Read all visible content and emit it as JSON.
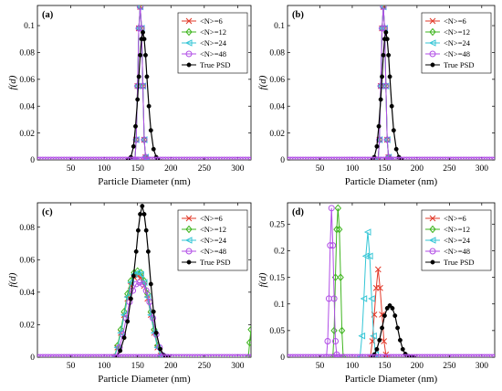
{
  "figure": {
    "legend_placement": "top-right",
    "colors": {
      "N6": "#e23a2a",
      "N12": "#3fb51f",
      "N24": "#35c6d6",
      "N48": "#b14ee6",
      "true": "#000000"
    },
    "markers": {
      "N6": "x-cross",
      "N12": "diamond",
      "N24": "left-triangle",
      "N48": "circle",
      "true": "filled-dot"
    }
  },
  "chart_data": [
    {
      "type": "line",
      "panel_label": "(a)",
      "xlabel": "Particle Diameter (nm)",
      "ylabel": "f(d)",
      "xlim": [
        0,
        320
      ],
      "ylim": [
        0,
        0.115
      ],
      "xticks": [
        50,
        100,
        150,
        200,
        250,
        300
      ],
      "xtick_labels": [
        "50",
        "100",
        "150",
        "200",
        "250",
        "300"
      ],
      "yticks": [
        0,
        0.02,
        0.04,
        0.06,
        0.08,
        0.1
      ],
      "ytick_labels": [
        "0",
        "0.02",
        "0.04",
        "0.06",
        "0.08",
        "0.1"
      ],
      "grid": false,
      "legend": [
        "<N>=6",
        "<N>=12",
        "<N>=24",
        "<N>=48",
        "True PSD"
      ],
      "series": [
        {
          "name": "<N>=6",
          "key": "N6",
          "x": [
            146,
            148,
            150,
            152,
            154,
            156,
            158,
            160,
            162,
            164
          ],
          "y": [
            0,
            0.015,
            0.055,
            0.098,
            0.114,
            0.098,
            0.055,
            0.015,
            0.002,
            0
          ]
        },
        {
          "name": "<N>=12",
          "key": "N12",
          "x": [
            146,
            148,
            150,
            152,
            154,
            156,
            158,
            160,
            162,
            164
          ],
          "y": [
            0,
            0.015,
            0.055,
            0.098,
            0.114,
            0.098,
            0.055,
            0.015,
            0.002,
            0
          ]
        },
        {
          "name": "<N>=24",
          "key": "N24",
          "x": [
            146,
            148,
            150,
            152,
            154,
            156,
            158,
            160,
            162,
            164
          ],
          "y": [
            0,
            0.015,
            0.055,
            0.098,
            0.114,
            0.098,
            0.055,
            0.015,
            0.002,
            0
          ]
        },
        {
          "name": "<N>=48",
          "key": "N48",
          "x": [
            146,
            148,
            150,
            152,
            154,
            156,
            158,
            160,
            162,
            164
          ],
          "y": [
            0,
            0.015,
            0.055,
            0.098,
            0.114,
            0.098,
            0.055,
            0.015,
            0.002,
            0
          ]
        },
        {
          "name": "True PSD",
          "key": "true",
          "x": [
            136,
            140,
            144,
            147,
            150,
            152,
            154,
            156,
            158,
            160,
            162,
            164,
            167,
            170,
            174,
            178,
            182
          ],
          "y": [
            0,
            0.002,
            0.01,
            0.025,
            0.045,
            0.062,
            0.078,
            0.09,
            0.095,
            0.09,
            0.078,
            0.062,
            0.04,
            0.022,
            0.008,
            0.002,
            0
          ]
        }
      ]
    },
    {
      "type": "line",
      "panel_label": "(b)",
      "xlabel": "Particle Diameter (nm)",
      "ylabel": "f(d)",
      "xlim": [
        0,
        320
      ],
      "ylim": [
        0,
        0.115
      ],
      "xticks": [
        50,
        100,
        150,
        200,
        250,
        300
      ],
      "xtick_labels": [
        "50",
        "100",
        "150",
        "200",
        "250",
        "300"
      ],
      "yticks": [
        0,
        0.02,
        0.04,
        0.06,
        0.08,
        0.1
      ],
      "ytick_labels": [
        "0",
        "0.02",
        "0.04",
        "0.06",
        "0.08",
        "0.1"
      ],
      "grid": false,
      "legend": [
        "<N>=6",
        "<N>=12",
        "<N>=24",
        "<N>=48",
        "True PSD"
      ],
      "series": [
        {
          "name": "<N>=6",
          "key": "N6",
          "x": [
            140,
            142,
            144,
            146,
            148,
            150,
            152,
            154,
            156,
            158
          ],
          "y": [
            0,
            0.015,
            0.055,
            0.098,
            0.114,
            0.098,
            0.055,
            0.015,
            0.002,
            0
          ]
        },
        {
          "name": "<N>=12",
          "key": "N12",
          "x": [
            140,
            142,
            144,
            146,
            148,
            150,
            152,
            154,
            156,
            158
          ],
          "y": [
            0,
            0.015,
            0.055,
            0.098,
            0.114,
            0.098,
            0.055,
            0.015,
            0.002,
            0
          ]
        },
        {
          "name": "<N>=24",
          "key": "N24",
          "x": [
            140,
            142,
            144,
            146,
            148,
            150,
            152,
            154,
            156,
            158
          ],
          "y": [
            0,
            0.015,
            0.055,
            0.098,
            0.114,
            0.098,
            0.055,
            0.015,
            0.002,
            0
          ]
        },
        {
          "name": "<N>=48",
          "key": "N48",
          "x": [
            140,
            142,
            144,
            146,
            148,
            150,
            152,
            154,
            156,
            158
          ],
          "y": [
            0,
            0.015,
            0.055,
            0.098,
            0.114,
            0.098,
            0.055,
            0.015,
            0.002,
            0
          ]
        },
        {
          "name": "True PSD",
          "key": "true",
          "x": [
            130,
            134,
            138,
            141,
            144,
            146,
            148,
            150,
            152,
            154,
            156,
            158,
            161,
            164,
            168,
            172,
            176
          ],
          "y": [
            0,
            0.002,
            0.01,
            0.025,
            0.045,
            0.062,
            0.078,
            0.09,
            0.095,
            0.09,
            0.078,
            0.062,
            0.04,
            0.022,
            0.008,
            0.002,
            0
          ]
        }
      ]
    },
    {
      "type": "line",
      "panel_label": "(c)",
      "xlabel": "Particle Diameter (nm)",
      "ylabel": "f(d)",
      "xlim": [
        0,
        320
      ],
      "ylim": [
        0,
        0.095
      ],
      "xticks": [
        50,
        100,
        150,
        200,
        250,
        300
      ],
      "xtick_labels": [
        "50",
        "100",
        "150",
        "200",
        "250",
        "300"
      ],
      "yticks": [
        0,
        0.02,
        0.04,
        0.06,
        0.08
      ],
      "ytick_labels": [
        "0",
        "0.02",
        "0.04",
        "0.06",
        "0.08"
      ],
      "grid": false,
      "legend": [
        "<N>=6",
        "<N>=12",
        "<N>=24",
        "<N>=48",
        "True PSD"
      ],
      "series": [
        {
          "name": "<N>=6",
          "key": "N6",
          "x": [
            115,
            120,
            125,
            130,
            135,
            140,
            145,
            150,
            155,
            160,
            165,
            170,
            175,
            180,
            185,
            190
          ],
          "y": [
            0,
            0.006,
            0.015,
            0.026,
            0.036,
            0.044,
            0.049,
            0.05,
            0.049,
            0.044,
            0.036,
            0.026,
            0.015,
            0.006,
            0.001,
            0
          ]
        },
        {
          "name": "<N>=12",
          "key": "N12",
          "x": [
            115,
            120,
            125,
            130,
            135,
            140,
            145,
            150,
            155,
            160,
            165,
            170,
            175,
            180,
            185,
            190,
            316,
            318,
            320
          ],
          "y": [
            0,
            0.007,
            0.017,
            0.028,
            0.039,
            0.047,
            0.052,
            0.053,
            0.052,
            0.047,
            0.039,
            0.028,
            0.017,
            0.007,
            0.001,
            0,
            0,
            0.009,
            0.017
          ]
        },
        {
          "name": "<N>=24",
          "key": "N24",
          "x": [
            115,
            120,
            125,
            130,
            135,
            140,
            145,
            150,
            155,
            160,
            165,
            170,
            175,
            180,
            185,
            190
          ],
          "y": [
            0,
            0.006,
            0.015,
            0.026,
            0.037,
            0.046,
            0.051,
            0.052,
            0.051,
            0.046,
            0.037,
            0.026,
            0.015,
            0.006,
            0.001,
            0
          ]
        },
        {
          "name": "<N>=48",
          "key": "N48",
          "x": [
            118,
            123,
            128,
            133,
            138,
            143,
            148,
            153,
            158,
            163,
            168,
            173,
            178,
            183,
            188,
            193
          ],
          "y": [
            0,
            0.006,
            0.014,
            0.024,
            0.034,
            0.041,
            0.045,
            0.046,
            0.045,
            0.041,
            0.034,
            0.024,
            0.014,
            0.006,
            0.001,
            0
          ]
        },
        {
          "name": "True PSD",
          "key": "true",
          "x": [
            118,
            124,
            130,
            135,
            140,
            144,
            148,
            151,
            154,
            157,
            160,
            163,
            166,
            170,
            174,
            178,
            184,
            190,
            196
          ],
          "y": [
            0,
            0.004,
            0.012,
            0.022,
            0.036,
            0.05,
            0.065,
            0.078,
            0.088,
            0.093,
            0.088,
            0.078,
            0.065,
            0.045,
            0.028,
            0.015,
            0.005,
            0.001,
            0
          ]
        }
      ]
    },
    {
      "type": "line",
      "panel_label": "(d)",
      "xlabel": "Particle Diameter (nm)",
      "ylabel": "f(d)",
      "xlim": [
        0,
        320
      ],
      "ylim": [
        0,
        0.29
      ],
      "xticks": [
        50,
        100,
        150,
        200,
        250,
        300
      ],
      "xtick_labels": [
        "50",
        "100",
        "150",
        "200",
        "250",
        "300"
      ],
      "yticks": [
        0,
        0.05,
        0.1,
        0.15,
        0.2,
        0.25
      ],
      "ytick_labels": [
        "0",
        "0.05",
        "0.1",
        "0.15",
        "0.2",
        "0.25"
      ],
      "grid": false,
      "legend": [
        "<N>=6",
        "<N>=12",
        "<N>=24",
        "<N>=48",
        "True PSD"
      ],
      "series": [
        {
          "name": "<N>=6",
          "key": "N6",
          "x": [
            128,
            131,
            134,
            137,
            140,
            143,
            146,
            149,
            152,
            155
          ],
          "y": [
            0,
            0.03,
            0.08,
            0.13,
            0.165,
            0.13,
            0.08,
            0.03,
            0.005,
            0
          ]
        },
        {
          "name": "<N>=12",
          "key": "N12",
          "x": [
            70,
            72,
            74,
            76,
            78,
            80,
            82,
            84,
            86
          ],
          "y": [
            0,
            0.05,
            0.15,
            0.24,
            0.28,
            0.24,
            0.15,
            0.05,
            0
          ]
        },
        {
          "name": "<N>=24",
          "key": "N24",
          "x": [
            112,
            115,
            118,
            121,
            124,
            127,
            130,
            133,
            136,
            139
          ],
          "y": [
            0,
            0.04,
            0.11,
            0.19,
            0.235,
            0.19,
            0.11,
            0.04,
            0.005,
            0
          ]
        },
        {
          "name": "<N>=48",
          "key": "N48",
          "x": [
            60,
            62,
            64,
            66,
            68,
            70,
            72,
            74,
            76,
            78
          ],
          "y": [
            0,
            0.03,
            0.11,
            0.21,
            0.28,
            0.21,
            0.11,
            0.03,
            0.005,
            0
          ]
        },
        {
          "name": "True PSD",
          "key": "true",
          "x": [
            130,
            134,
            138,
            142,
            146,
            150,
            154,
            158,
            162,
            166,
            170,
            174,
            178,
            182,
            186,
            190,
            195
          ],
          "y": [
            0,
            0.005,
            0.015,
            0.032,
            0.055,
            0.078,
            0.092,
            0.097,
            0.092,
            0.078,
            0.055,
            0.032,
            0.015,
            0.006,
            0.002,
            0.001,
            0
          ]
        }
      ]
    }
  ]
}
